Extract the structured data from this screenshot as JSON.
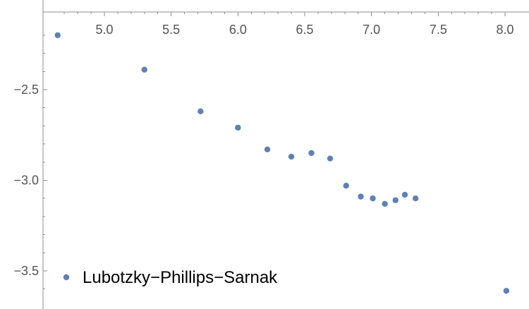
{
  "chart_data": {
    "type": "scatter",
    "title": "",
    "xlabel": "",
    "ylabel": "",
    "xlim": [
      4.62,
      8.04
    ],
    "ylim": [
      -3.66,
      -2.18
    ],
    "xticks": {
      "major": [
        "5.0",
        "5.5",
        "6.0",
        "6.5",
        "7.0",
        "7.5",
        "8.0"
      ],
      "major_values": [
        5.0,
        5.5,
        6.0,
        6.5,
        7.0,
        7.5,
        8.0
      ]
    },
    "yticks": {
      "major": [
        "−2.5",
        "−3.0",
        "−3.5"
      ],
      "major_values": [
        -2.5,
        -3.0,
        -3.5
      ]
    },
    "grid": false,
    "legend_position": "bottom-left",
    "series": [
      {
        "name": "Lubotzky−Phillips−Sarnak",
        "color": "#5e81b5",
        "x": [
          4.65,
          5.3,
          5.72,
          6.0,
          6.22,
          6.4,
          6.55,
          6.69,
          6.81,
          6.92,
          7.01,
          7.1,
          7.18,
          7.25,
          7.33,
          8.01
        ],
        "y": [
          -2.2,
          -2.39,
          -2.62,
          -2.71,
          -2.83,
          -2.87,
          -2.85,
          -2.88,
          -3.03,
          -3.09,
          -3.1,
          -3.13,
          -3.11,
          -3.08,
          -3.1,
          -3.61
        ]
      }
    ]
  }
}
